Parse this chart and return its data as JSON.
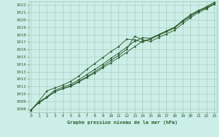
{
  "xlabel": "Graphe pression niveau de la mer (hPa)",
  "ylim": [
    1007.5,
    1022.5
  ],
  "xlim": [
    -0.3,
    23.3
  ],
  "yticks": [
    1008,
    1009,
    1010,
    1011,
    1012,
    1013,
    1014,
    1015,
    1016,
    1017,
    1018,
    1019,
    1020,
    1021,
    1022
  ],
  "xticks": [
    0,
    1,
    2,
    3,
    4,
    5,
    6,
    7,
    8,
    9,
    10,
    11,
    12,
    13,
    14,
    15,
    16,
    17,
    18,
    19,
    20,
    21,
    22,
    23
  ],
  "bg_color": "#cceee8",
  "grid_color": "#aaccbb",
  "line_color": "#2d5e30",
  "series": [
    [
      1007.8,
      1008.8,
      1009.5,
      1010.3,
      1010.7,
      1011.1,
      1011.7,
      1012.3,
      1013.0,
      1013.7,
      1014.5,
      1015.2,
      1016.0,
      1017.8,
      1017.3,
      1017.1,
      1017.6,
      1018.1,
      1018.6,
      1019.5,
      1020.3,
      1021.0,
      1021.5,
      1022.2
    ],
    [
      1007.8,
      1008.8,
      1009.5,
      1010.3,
      1010.7,
      1011.0,
      1011.6,
      1012.2,
      1012.8,
      1013.5,
      1014.2,
      1014.9,
      1015.6,
      1016.4,
      1017.1,
      1017.4,
      1017.9,
      1018.4,
      1018.9,
      1019.8,
      1020.5,
      1021.2,
      1021.6,
      1022.1
    ],
    [
      1007.8,
      1008.9,
      1009.6,
      1010.5,
      1010.9,
      1011.3,
      1011.9,
      1012.6,
      1013.3,
      1014.0,
      1014.8,
      1015.5,
      1016.3,
      1017.1,
      1017.6,
      1017.5,
      1018.0,
      1018.5,
      1019.0,
      1019.9,
      1020.7,
      1021.3,
      1021.7,
      1022.2
    ],
    [
      1007.8,
      1009.0,
      1010.4,
      1010.8,
      1011.2,
      1011.7,
      1012.4,
      1013.3,
      1014.1,
      1014.9,
      1015.7,
      1016.4,
      1017.4,
      1017.3,
      1017.0,
      1017.5,
      1018.0,
      1018.5,
      1019.0,
      1019.8,
      1020.5,
      1021.2,
      1021.8,
      1022.4
    ]
  ]
}
